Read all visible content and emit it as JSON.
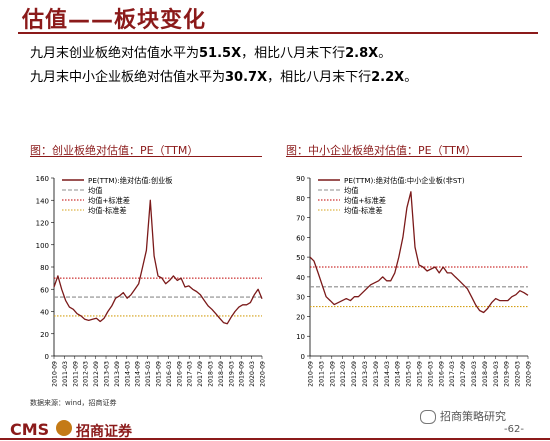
{
  "page": {
    "title": "估值——板块变化",
    "bullets": [
      {
        "pre": "九月末创业板绝对估值水平为",
        "v1": "51.5X",
        "mid": "，相比八月末下行",
        "v2": "2.8X",
        "post": "。"
      },
      {
        "pre": "九月末中小企业板绝对估值水平为",
        "v1": "30.7X",
        "mid": "，相比八月末下行",
        "v2": "2.2X",
        "post": "。"
      }
    ],
    "source": "数据来源：wind，招商证券",
    "footer": {
      "brand": "CMS",
      "logo_text": "招商证券",
      "wechat": "招商策略研究",
      "page_number": "-62-"
    }
  },
  "chart_data": [
    {
      "type": "line",
      "title": "图：创业板绝对估值：PE（TTM）",
      "x_ticks": [
        "2010-09",
        "2011-03",
        "2011-09",
        "2012-03",
        "2012-09",
        "2013-03",
        "2013-09",
        "2014-03",
        "2014-09",
        "2015-03",
        "2015-09",
        "2016-03",
        "2016-09",
        "2017-03",
        "2017-09",
        "2018-03",
        "2018-09",
        "2019-03",
        "2019-09",
        "2020-03",
        "2020-09"
      ],
      "ylim": [
        0,
        160
      ],
      "y_ticks": [
        0,
        20,
        40,
        60,
        80,
        100,
        120,
        140,
        160
      ],
      "series": [
        {
          "name": "PE(TTM):绝对估值:创业板",
          "color": "#7B1A1A",
          "values": [
            62,
            72,
            60,
            50,
            44,
            42,
            38,
            36,
            33,
            32,
            33,
            34,
            31,
            34,
            40,
            45,
            52,
            54,
            57,
            52,
            55,
            60,
            65,
            80,
            95,
            140,
            90,
            72,
            70,
            65,
            68,
            72,
            68,
            70,
            62,
            63,
            60,
            58,
            55,
            50,
            45,
            42,
            38,
            34,
            30,
            29,
            35,
            40,
            44,
            46,
            46,
            48,
            55,
            60,
            51.5
          ]
        },
        {
          "name": "均值",
          "color": "#8C8C8C",
          "style": "dashed",
          "value": 53
        },
        {
          "name": "均值+标准差",
          "color": "#C00000",
          "style": "dotted",
          "value": 70
        },
        {
          "name": "均值-标准差",
          "color": "#D4A017",
          "style": "dotted",
          "value": 36
        }
      ]
    },
    {
      "type": "line",
      "title": "图：中小企业板绝对估值：PE（TTM）",
      "x_ticks": [
        "2010-09",
        "2011-03",
        "2011-09",
        "2012-03",
        "2012-09",
        "2013-03",
        "2013-09",
        "2014-03",
        "2014-09",
        "2015-03",
        "2015-09",
        "2016-03",
        "2016-09",
        "2017-03",
        "2017-09",
        "2018-03",
        "2018-09",
        "2019-03",
        "2019-09",
        "2020-03",
        "2020-09"
      ],
      "ylim": [
        0,
        90
      ],
      "y_ticks": [
        0,
        10,
        20,
        30,
        40,
        50,
        60,
        70,
        80,
        90
      ],
      "series": [
        {
          "name": "PE(TTM):绝对估值:中小企业板(非ST)",
          "color": "#7B1A1A",
          "values": [
            50,
            48,
            42,
            36,
            30,
            28,
            26,
            27,
            28,
            29,
            28,
            30,
            30,
            32,
            34,
            36,
            37,
            38,
            40,
            38,
            38,
            42,
            50,
            60,
            75,
            83,
            55,
            46,
            45,
            43,
            44,
            45,
            42,
            45,
            42,
            42,
            40,
            38,
            36,
            34,
            30,
            26,
            23,
            22,
            24,
            27,
            29,
            28,
            28,
            28,
            30,
            31,
            33,
            32,
            30.7
          ]
        },
        {
          "name": "均值",
          "color": "#8C8C8C",
          "style": "dashed",
          "value": 35
        },
        {
          "name": "均值+标准差",
          "color": "#C00000",
          "style": "dotted",
          "value": 45
        },
        {
          "name": "均值-标准差",
          "color": "#D4A017",
          "style": "dotted",
          "value": 25
        }
      ]
    }
  ]
}
